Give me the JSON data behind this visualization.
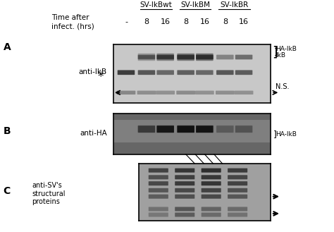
{
  "fig_width": 4.74,
  "fig_height": 3.29,
  "bg_color": "#ffffff",
  "header_lines": [
    "SV-IkBwt",
    "SV-IkBM",
    "SV-IkBR"
  ],
  "header_underline": true,
  "time_label": "Time after\ninfect. (hrs)",
  "time_points": [
    "-",
    "8",
    "16",
    "8",
    "16",
    "8",
    "16"
  ],
  "panel_A_label": "A",
  "panel_B_label": "B",
  "panel_C_label": "C",
  "panel_A_probe": "anti-IkB",
  "panel_B_probe": "anti-HA",
  "panel_C_probe": "anti-SV's\nstructural\nproteins",
  "right_labels_A": [
    "HA-IkB",
    "IkB",
    "N.S."
  ],
  "right_label_B": "HA-IkB",
  "arrow_color": "#000000"
}
